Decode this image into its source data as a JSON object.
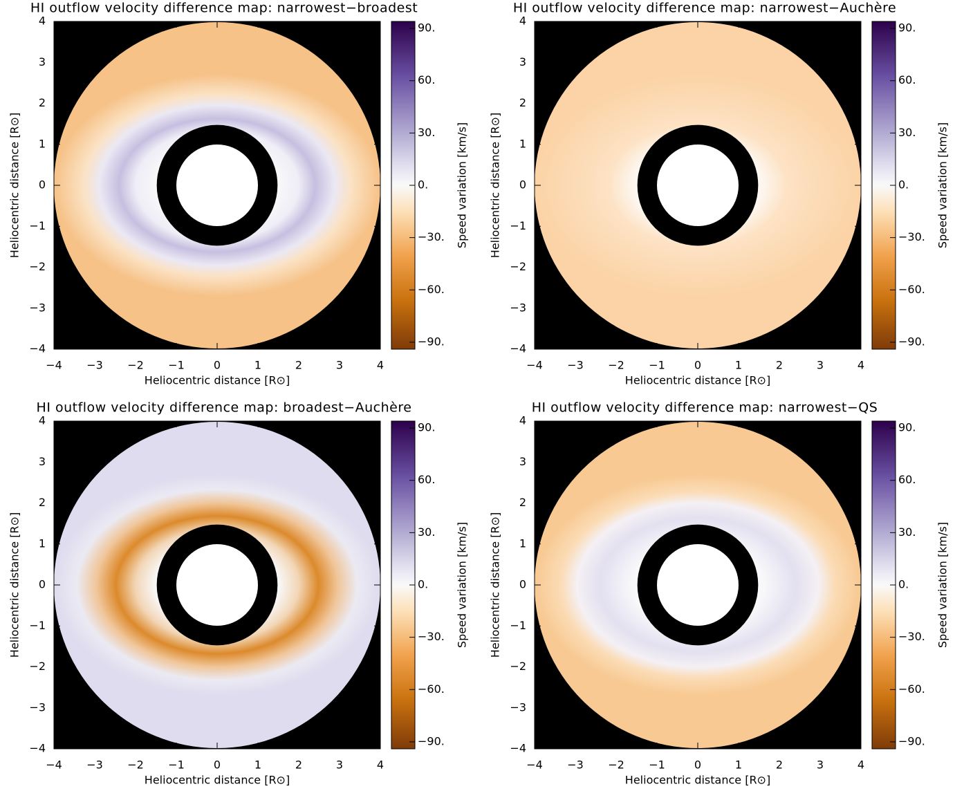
{
  "chart_data": [
    {
      "type": "heatmap",
      "title": "HI outflow velocity difference map: narrowest−broadest",
      "x_label": "Heliocentric distance [R⊙]",
      "y_label": "Heliocentric distance [R⊙]",
      "colorbar_label": "Speed variation [km/s]",
      "xlim": [
        -4,
        4
      ],
      "ylim": [
        -4,
        4
      ],
      "clim": [
        -94,
        94
      ],
      "xticks": [
        {
          "value": -4,
          "label": "−4"
        },
        {
          "value": -3,
          "label": "−3"
        },
        {
          "value": -2,
          "label": "−2"
        },
        {
          "value": -1,
          "label": "−1"
        },
        0,
        1,
        2,
        3,
        4
      ],
      "yticks": [
        {
          "value": -4,
          "label": "−4"
        },
        {
          "value": -3,
          "label": "−3"
        },
        {
          "value": -2,
          "label": "−2"
        },
        {
          "value": -1,
          "label": "−1"
        },
        0,
        1,
        2,
        3,
        4
      ],
      "cticks": [
        {
          "value": 90,
          "label": "90."
        },
        {
          "value": 60,
          "label": "60."
        },
        {
          "value": 30,
          "label": "30."
        },
        {
          "value": 0,
          "label": "0."
        },
        {
          "value": -30,
          "label": "−30."
        },
        {
          "value": -60,
          "label": "−60."
        },
        {
          "value": -90,
          "label": "−90."
        }
      ]
    },
    {
      "type": "heatmap",
      "title": "HI outflow velocity difference map: narrowest−Auchère",
      "x_label": "Heliocentric distance [R⊙]",
      "y_label": "Heliocentric distance [R⊙]",
      "colorbar_label": "Speed variation [km/s]",
      "xlim": [
        -4,
        4
      ],
      "ylim": [
        -4,
        4
      ],
      "clim": [
        -94,
        94
      ],
      "xticks": [
        {
          "value": -4,
          "label": "−4"
        },
        {
          "value": -3,
          "label": "−3"
        },
        {
          "value": -2,
          "label": "−2"
        },
        {
          "value": -1,
          "label": "−1"
        },
        0,
        1,
        2,
        3,
        4
      ],
      "yticks": [
        {
          "value": -4,
          "label": "−4"
        },
        {
          "value": -3,
          "label": "−3"
        },
        {
          "value": -2,
          "label": "−2"
        },
        {
          "value": -1,
          "label": "−1"
        },
        0,
        1,
        2,
        3,
        4
      ],
      "cticks": [
        {
          "value": 90,
          "label": "90."
        },
        {
          "value": 60,
          "label": "60."
        },
        {
          "value": 30,
          "label": "30."
        },
        {
          "value": 0,
          "label": "0."
        },
        {
          "value": -30,
          "label": "−30."
        },
        {
          "value": -60,
          "label": "−60."
        },
        {
          "value": -90,
          "label": "−90."
        }
      ]
    },
    {
      "type": "heatmap",
      "title": "HI outflow velocity difference map: broadest−Auchère",
      "x_label": "Heliocentric distance [R⊙]",
      "y_label": "Heliocentric distance [R⊙]",
      "colorbar_label": "Speed variation [km/s]",
      "xlim": [
        -4,
        4
      ],
      "ylim": [
        -4,
        4
      ],
      "clim": [
        -94,
        94
      ],
      "xticks": [
        {
          "value": -4,
          "label": "−4"
        },
        {
          "value": -3,
          "label": "−3"
        },
        {
          "value": -2,
          "label": "−2"
        },
        {
          "value": -1,
          "label": "−1"
        },
        0,
        1,
        2,
        3,
        4
      ],
      "yticks": [
        {
          "value": -4,
          "label": "−4"
        },
        {
          "value": -3,
          "label": "−3"
        },
        {
          "value": -2,
          "label": "−2"
        },
        {
          "value": -1,
          "label": "−1"
        },
        0,
        1,
        2,
        3,
        4
      ],
      "cticks": [
        {
          "value": 90,
          "label": "90."
        },
        {
          "value": 60,
          "label": "60."
        },
        {
          "value": 30,
          "label": "30."
        },
        {
          "value": 0,
          "label": "0."
        },
        {
          "value": -30,
          "label": "−30."
        },
        {
          "value": -60,
          "label": "−60."
        },
        {
          "value": -90,
          "label": "−90."
        }
      ]
    },
    {
      "type": "heatmap",
      "title": "HI outflow velocity difference map: narrowest−QS",
      "x_label": "Heliocentric distance [R⊙]",
      "y_label": "Heliocentric distance [R⊙]",
      "colorbar_label": "Speed variation [km/s]",
      "xlim": [
        -4,
        4
      ],
      "ylim": [
        -4,
        4
      ],
      "clim": [
        -94,
        94
      ],
      "xticks": [
        {
          "value": -4,
          "label": "−4"
        },
        {
          "value": -3,
          "label": "−3"
        },
        {
          "value": -2,
          "label": "−2"
        },
        {
          "value": -1,
          "label": "−1"
        },
        0,
        1,
        2,
        3,
        4
      ],
      "yticks": [
        {
          "value": -4,
          "label": "−4"
        },
        {
          "value": -3,
          "label": "−3"
        },
        {
          "value": -2,
          "label": "−2"
        },
        {
          "value": -1,
          "label": "−1"
        },
        0,
        1,
        2,
        3,
        4
      ],
      "cticks": [
        {
          "value": 90,
          "label": "90."
        },
        {
          "value": 60,
          "label": "60."
        },
        {
          "value": 30,
          "label": "30."
        },
        {
          "value": 0,
          "label": "0."
        },
        {
          "value": -30,
          "label": "−30."
        },
        {
          "value": -60,
          "label": "−60."
        },
        {
          "value": -90,
          "label": "−90."
        }
      ]
    }
  ]
}
